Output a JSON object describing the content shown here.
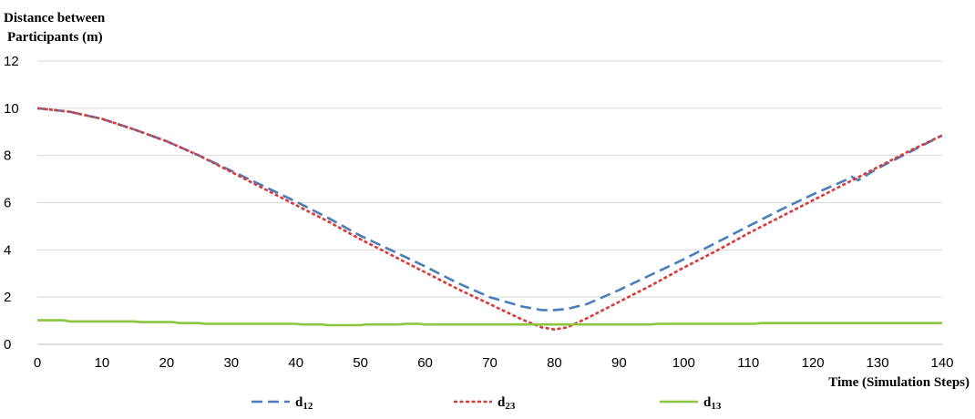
{
  "chart_data": {
    "type": "line",
    "ylabel_lines": [
      "Distance between",
      "Participants  (m)"
    ],
    "xlabel": "Time  (Simulation  Steps)",
    "xlim": [
      0,
      140
    ],
    "ylim": [
      0,
      12
    ],
    "x_ticks": [
      0,
      10,
      20,
      30,
      40,
      50,
      60,
      70,
      80,
      90,
      100,
      110,
      120,
      130,
      140
    ],
    "y_ticks": [
      0,
      2,
      4,
      6,
      8,
      10,
      12
    ],
    "grid": "horizontal",
    "legend_position": "bottom",
    "series": [
      {
        "legend_base": "d",
        "legend_sub": "12",
        "color": "#4a7ebb",
        "style": "dashed",
        "x": [
          0,
          5,
          10,
          15,
          20,
          25,
          30,
          35,
          40,
          45,
          50,
          55,
          60,
          65,
          70,
          75,
          78,
          80,
          82,
          85,
          90,
          95,
          100,
          105,
          110,
          115,
          120,
          125,
          126,
          127,
          130,
          135,
          140
        ],
        "y": [
          10.0,
          9.85,
          9.55,
          9.1,
          8.6,
          8.0,
          7.35,
          6.7,
          6.05,
          5.35,
          4.6,
          3.95,
          3.3,
          2.6,
          2.0,
          1.6,
          1.45,
          1.45,
          1.5,
          1.7,
          2.3,
          2.95,
          3.6,
          4.3,
          5.0,
          5.7,
          6.35,
          6.95,
          7.1,
          6.95,
          7.45,
          8.15,
          8.85
        ]
      },
      {
        "legend_base": "d",
        "legend_sub": "23",
        "color": "#d83a3a",
        "style": "dotted",
        "x": [
          0,
          5,
          10,
          15,
          20,
          25,
          30,
          35,
          40,
          45,
          50,
          55,
          60,
          65,
          70,
          75,
          78,
          80,
          82,
          85,
          90,
          95,
          100,
          105,
          110,
          115,
          120,
          125,
          130,
          135,
          140
        ],
        "y": [
          10.0,
          9.85,
          9.55,
          9.1,
          8.6,
          8.0,
          7.3,
          6.6,
          5.9,
          5.2,
          4.45,
          3.75,
          3.05,
          2.35,
          1.7,
          1.05,
          0.72,
          0.63,
          0.72,
          1.1,
          1.8,
          2.5,
          3.25,
          3.95,
          4.7,
          5.4,
          6.1,
          6.8,
          7.5,
          8.2,
          8.85
        ]
      },
      {
        "legend_base": "d",
        "legend_sub": "13",
        "color": "#8cc63f",
        "style": "solid",
        "x": [
          0,
          4,
          5,
          15,
          16,
          21,
          22,
          25,
          26,
          40,
          41,
          44,
          45,
          50,
          51,
          56,
          57,
          59,
          60,
          95,
          96,
          111,
          112,
          140
        ],
        "y": [
          1.02,
          1.02,
          0.97,
          0.97,
          0.94,
          0.94,
          0.9,
          0.9,
          0.87,
          0.87,
          0.84,
          0.84,
          0.81,
          0.81,
          0.84,
          0.84,
          0.87,
          0.87,
          0.84,
          0.84,
          0.87,
          0.87,
          0.9,
          0.9
        ]
      }
    ]
  }
}
